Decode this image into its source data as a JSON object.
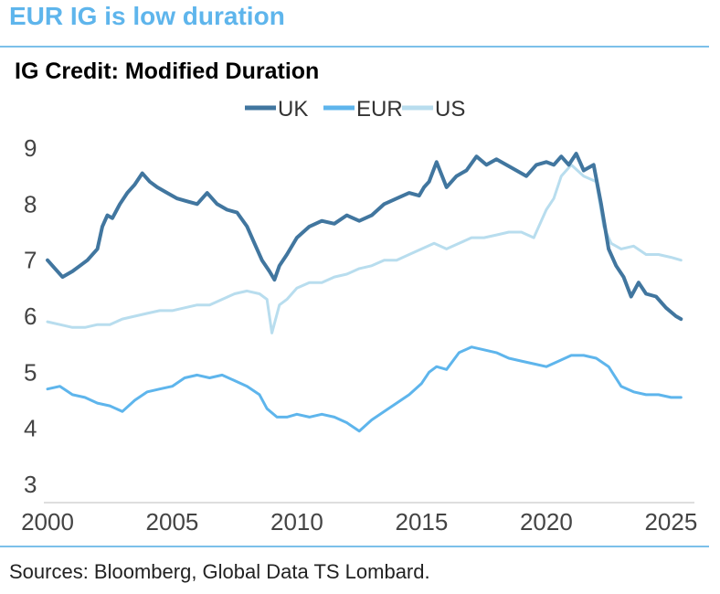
{
  "headline": "EUR IG is low duration",
  "source": "Sources: Bloomberg, Global Data TS Lombard.",
  "chart_data": {
    "type": "line",
    "title": "IG Credit: Modified Duration",
    "xlabel": "",
    "ylabel": "",
    "xlim": [
      2000,
      2025.5
    ],
    "ylim": [
      3,
      9
    ],
    "xticks": [
      2000,
      2005,
      2010,
      2015,
      2020,
      2025
    ],
    "yticks": [
      3,
      4,
      5,
      6,
      7,
      8,
      9
    ],
    "grid": false,
    "legend_position": "top-center",
    "series": [
      {
        "name": "UK",
        "color": "#41769f",
        "x": [
          2000.0,
          2000.3,
          2000.6,
          2001.0,
          2001.3,
          2001.6,
          2002.0,
          2002.2,
          2002.4,
          2002.6,
          2002.9,
          2003.2,
          2003.5,
          2003.8,
          2004.1,
          2004.4,
          2004.8,
          2005.2,
          2005.6,
          2006.0,
          2006.4,
          2006.8,
          2007.2,
          2007.6,
          2008.0,
          2008.3,
          2008.6,
          2008.9,
          2009.1,
          2009.3,
          2009.6,
          2010.0,
          2010.5,
          2011.0,
          2011.5,
          2012.0,
          2012.5,
          2013.0,
          2013.5,
          2014.0,
          2014.5,
          2014.9,
          2015.1,
          2015.3,
          2015.6,
          2016.0,
          2016.4,
          2016.8,
          2017.2,
          2017.6,
          2018.0,
          2018.4,
          2018.8,
          2019.2,
          2019.6,
          2020.0,
          2020.3,
          2020.6,
          2020.9,
          2021.2,
          2021.5,
          2021.9,
          2022.2,
          2022.5,
          2022.8,
          2023.1,
          2023.4,
          2023.7,
          2024.0,
          2024.4,
          2024.8,
          2025.2,
          2025.4
        ],
        "values": [
          7.0,
          6.85,
          6.7,
          6.8,
          6.9,
          7.0,
          7.2,
          7.6,
          7.8,
          7.75,
          8.0,
          8.2,
          8.35,
          8.55,
          8.4,
          8.3,
          8.2,
          8.1,
          8.05,
          8.0,
          8.2,
          8.0,
          7.9,
          7.85,
          7.6,
          7.3,
          7.0,
          6.8,
          6.65,
          6.9,
          7.1,
          7.4,
          7.6,
          7.7,
          7.65,
          7.8,
          7.7,
          7.8,
          8.0,
          8.1,
          8.2,
          8.15,
          8.3,
          8.4,
          8.75,
          8.3,
          8.5,
          8.6,
          8.85,
          8.7,
          8.8,
          8.7,
          8.6,
          8.5,
          8.7,
          8.75,
          8.7,
          8.85,
          8.7,
          8.9,
          8.6,
          8.7,
          8.0,
          7.2,
          6.9,
          6.7,
          6.35,
          6.6,
          6.4,
          6.35,
          6.15,
          6.0,
          5.95
        ]
      },
      {
        "name": "EUR",
        "color": "#5eb5ec",
        "x": [
          2000.0,
          2000.5,
          2001.0,
          2001.5,
          2002.0,
          2002.5,
          2003.0,
          2003.5,
          2004.0,
          2004.5,
          2005.0,
          2005.5,
          2006.0,
          2006.5,
          2007.0,
          2007.5,
          2008.0,
          2008.5,
          2008.8,
          2009.2,
          2009.6,
          2010.0,
          2010.5,
          2011.0,
          2011.5,
          2012.0,
          2012.5,
          2013.0,
          2013.5,
          2014.0,
          2014.5,
          2015.0,
          2015.3,
          2015.6,
          2016.0,
          2016.5,
          2017.0,
          2017.5,
          2018.0,
          2018.5,
          2019.0,
          2019.5,
          2020.0,
          2020.5,
          2021.0,
          2021.5,
          2022.0,
          2022.5,
          2023.0,
          2023.5,
          2024.0,
          2024.5,
          2025.0,
          2025.4
        ],
        "values": [
          4.7,
          4.75,
          4.6,
          4.55,
          4.45,
          4.4,
          4.3,
          4.5,
          4.65,
          4.7,
          4.75,
          4.9,
          4.95,
          4.9,
          4.95,
          4.85,
          4.75,
          4.6,
          4.35,
          4.2,
          4.2,
          4.25,
          4.2,
          4.25,
          4.2,
          4.1,
          3.95,
          4.15,
          4.3,
          4.45,
          4.6,
          4.8,
          5.0,
          5.1,
          5.05,
          5.35,
          5.45,
          5.4,
          5.35,
          5.25,
          5.2,
          5.15,
          5.1,
          5.2,
          5.3,
          5.3,
          5.25,
          5.1,
          4.75,
          4.65,
          4.6,
          4.6,
          4.55,
          4.55
        ]
      },
      {
        "name": "US",
        "color": "#b8ddee",
        "x": [
          2000.0,
          2000.5,
          2001.0,
          2001.5,
          2002.0,
          2002.5,
          2003.0,
          2003.5,
          2004.0,
          2004.5,
          2005.0,
          2005.5,
          2006.0,
          2006.5,
          2007.0,
          2007.5,
          2008.0,
          2008.5,
          2008.8,
          2009.0,
          2009.3,
          2009.6,
          2010.0,
          2010.5,
          2011.0,
          2011.5,
          2012.0,
          2012.5,
          2013.0,
          2013.5,
          2014.0,
          2014.5,
          2015.0,
          2015.5,
          2016.0,
          2016.5,
          2017.0,
          2017.5,
          2018.0,
          2018.5,
          2019.0,
          2019.5,
          2020.0,
          2020.3,
          2020.6,
          2021.0,
          2021.5,
          2022.0,
          2022.3,
          2022.6,
          2023.0,
          2023.5,
          2024.0,
          2024.5,
          2025.0,
          2025.4
        ],
        "values": [
          5.9,
          5.85,
          5.8,
          5.8,
          5.85,
          5.85,
          5.95,
          6.0,
          6.05,
          6.1,
          6.1,
          6.15,
          6.2,
          6.2,
          6.3,
          6.4,
          6.45,
          6.4,
          6.3,
          5.7,
          6.2,
          6.3,
          6.5,
          6.6,
          6.6,
          6.7,
          6.75,
          6.85,
          6.9,
          7.0,
          7.0,
          7.1,
          7.2,
          7.3,
          7.2,
          7.3,
          7.4,
          7.4,
          7.45,
          7.5,
          7.5,
          7.4,
          7.9,
          8.1,
          8.5,
          8.7,
          8.5,
          8.4,
          7.6,
          7.3,
          7.2,
          7.25,
          7.1,
          7.1,
          7.05,
          7.0
        ]
      }
    ]
  }
}
